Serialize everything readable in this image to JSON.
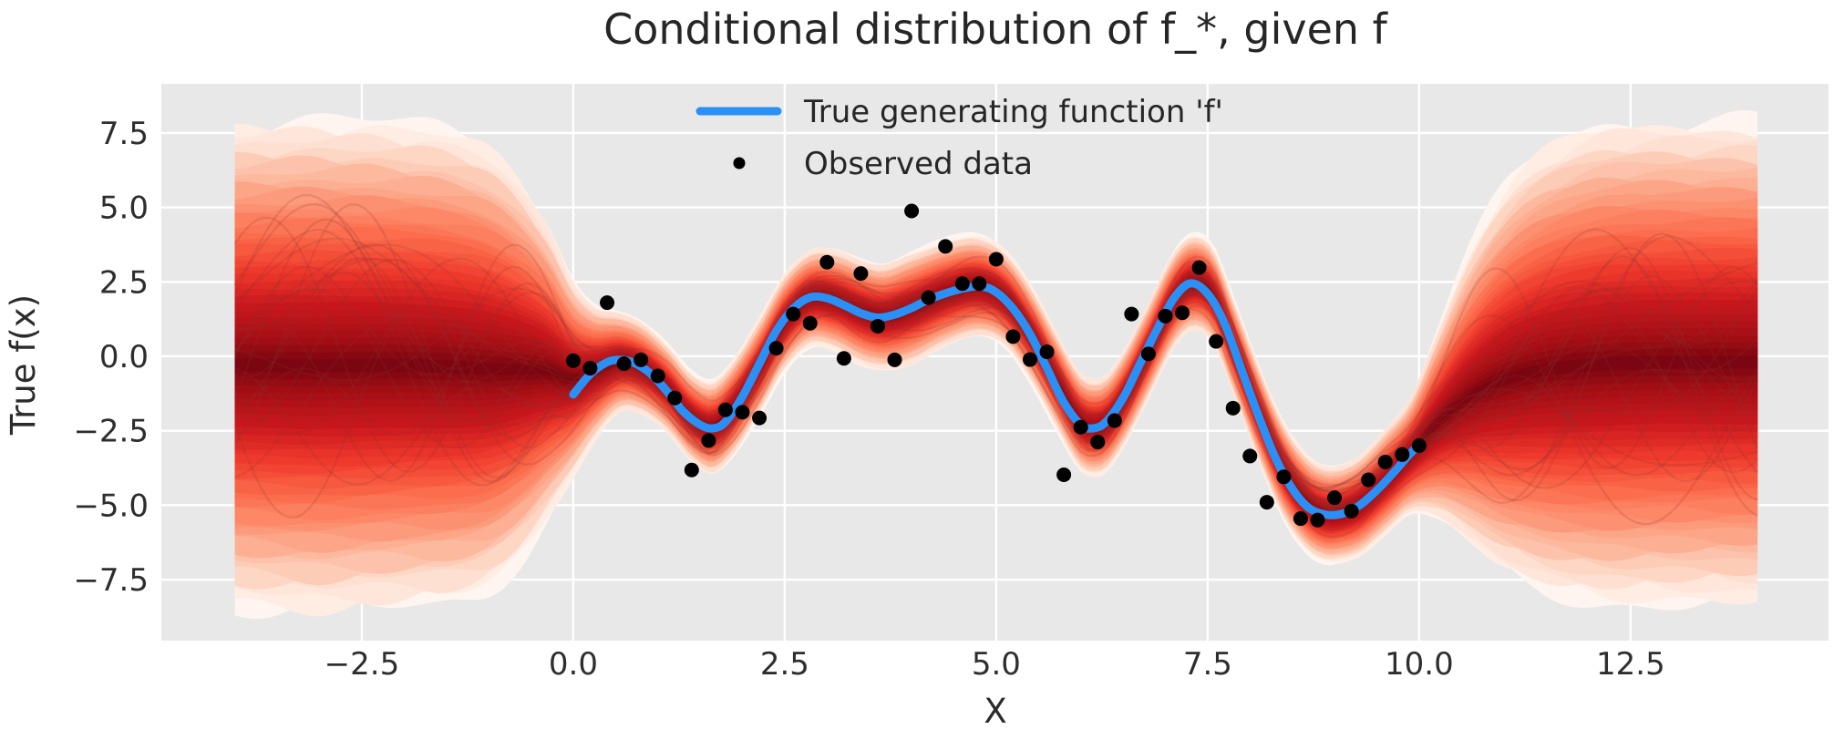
{
  "figure": {
    "background": "#ffffff",
    "axes_background": "#e8e8e8",
    "grid_color": "#ffffff",
    "text_color": "#262626"
  },
  "chart_data": {
    "type": "line",
    "title": "Conditional distribution of f_*, given f",
    "xlabel": "X",
    "ylabel": "True f(x)",
    "grid": true,
    "legend_position": "upper center",
    "legend_frame": false,
    "xlim": [
      -4.87,
      14.84
    ],
    "ylim": [
      -9.55,
      9.15
    ],
    "x_ticks": [
      -2.5,
      0.0,
      2.5,
      5.0,
      7.5,
      10.0,
      12.5
    ],
    "x_tick_labels": [
      "−2.5",
      "0.0",
      "2.5",
      "5.0",
      "7.5",
      "10.0",
      "12.5"
    ],
    "y_ticks": [
      7.5,
      5.0,
      2.5,
      0.0,
      -2.5,
      -5.0,
      -7.5
    ],
    "y_tick_labels": [
      "7.5",
      "5.0",
      "2.5",
      "0.0",
      "−2.5",
      "−5.0",
      "−7.5"
    ],
    "legend": [
      {
        "label": "True generating function 'f'",
        "marker": "line",
        "color": "#2b90f5"
      },
      {
        "label": "Observed data",
        "marker": "dot",
        "color": "#000000"
      }
    ],
    "series": [
      {
        "name": "True generating function 'f'",
        "type": "line",
        "color": "#2b90f5",
        "line_width": 9,
        "x": [
          0,
          0.2,
          0.4,
          0.55,
          0.7,
          0.9,
          1.1,
          1.3,
          1.5,
          1.65,
          1.8,
          2.0,
          2.2,
          2.4,
          2.6,
          2.8,
          3.0,
          3.2,
          3.4,
          3.6,
          3.8,
          4.0,
          4.2,
          4.5,
          4.8,
          5.0,
          5.2,
          5.4,
          5.6,
          5.8,
          6.0,
          6.15,
          6.3,
          6.5,
          6.7,
          6.9,
          7.1,
          7.3,
          7.5,
          7.7,
          7.9,
          8.1,
          8.3,
          8.5,
          8.7,
          8.9,
          9.1,
          9.3,
          9.5,
          9.7,
          9.9,
          10.0
        ],
        "y": [
          -1.28,
          -0.6,
          -0.2,
          -0.12,
          -0.2,
          -0.55,
          -1.15,
          -1.85,
          -2.3,
          -2.42,
          -2.2,
          -1.35,
          -0.25,
          0.85,
          1.6,
          1.98,
          1.95,
          1.72,
          1.45,
          1.3,
          1.4,
          1.62,
          1.9,
          2.2,
          2.35,
          2.15,
          1.6,
          0.75,
          -0.4,
          -1.55,
          -2.3,
          -2.42,
          -2.2,
          -1.4,
          -0.25,
          0.9,
          1.95,
          2.45,
          2.1,
          1.1,
          -0.45,
          -2.0,
          -3.4,
          -4.45,
          -5.1,
          -5.32,
          -5.28,
          -5.0,
          -4.5,
          -3.9,
          -3.25,
          -3.0
        ]
      },
      {
        "name": "Observed data",
        "type": "scatter",
        "color": "#000000",
        "marker_radius": 8,
        "x": [
          0.0,
          0.2,
          0.4,
          0.6,
          0.8,
          1.0,
          1.2,
          1.4,
          1.6,
          1.8,
          2.0,
          2.2,
          2.4,
          2.6,
          2.8,
          3.0,
          3.2,
          3.4,
          3.6,
          3.8,
          4.0,
          4.2,
          4.4,
          4.6,
          4.8,
          5.0,
          5.2,
          5.4,
          5.6,
          5.8,
          6.0,
          6.2,
          6.4,
          6.6,
          6.8,
          7.0,
          7.2,
          7.4,
          7.6,
          7.8,
          8.0,
          8.2,
          8.4,
          8.6,
          8.8,
          9.0,
          9.2,
          9.4,
          9.6,
          9.8,
          10.0
        ],
        "y": [
          -0.15,
          -0.4,
          1.8,
          -0.25,
          -0.12,
          -0.66,
          -1.4,
          -3.82,
          -2.83,
          -1.8,
          -1.88,
          -2.07,
          0.27,
          1.42,
          1.11,
          3.16,
          -0.07,
          2.78,
          1.01,
          -0.12,
          4.88,
          1.97,
          3.69,
          2.44,
          2.44,
          3.26,
          0.66,
          -0.11,
          0.15,
          -3.98,
          -2.38,
          -2.88,
          -2.16,
          1.42,
          0.08,
          1.35,
          1.46,
          2.98,
          0.5,
          -1.74,
          -3.35,
          -4.9,
          -4.05,
          -5.45,
          -5.5,
          -4.75,
          -5.2,
          -4.15,
          -3.55,
          -3.3,
          -3.0
        ]
      }
    ],
    "posterior_density": {
      "description": "Conditional GP density of f_* given observed f: nested percentile bands shaded with the Reds colormap, tight around the data on x in [0,10], wide prior fan outside",
      "colormap": [
        "#fff5f0",
        "#fee0d2",
        "#fcbba1",
        "#fc9272",
        "#fb6a4a",
        "#ef3b2c",
        "#cb181d",
        "#a50f15",
        "#67000d"
      ],
      "x_range": [
        -4,
        14
      ],
      "bands": 34,
      "max_sigma": 3.3,
      "x": [
        -4,
        -3,
        -2,
        -1.5,
        -1,
        -0.6,
        -0.3,
        0,
        0.25,
        0.55,
        0.8,
        1.1,
        1.4,
        1.65,
        1.9,
        2.2,
        2.5,
        2.8,
        3.1,
        3.4,
        3.65,
        4,
        4.4,
        4.8,
        5.1,
        5.4,
        5.7,
        6,
        6.15,
        6.3,
        6.5,
        6.8,
        7.1,
        7.3,
        7.55,
        7.8,
        8.1,
        8.4,
        8.7,
        8.9,
        9.1,
        9.3,
        9.6,
        9.9,
        10.2,
        10.6,
        11,
        11.5,
        12,
        12.5,
        13,
        14
      ],
      "mean": [
        -0.3,
        -0.32,
        -0.3,
        -0.35,
        -0.42,
        -0.45,
        -0.5,
        -0.75,
        -0.55,
        -0.2,
        -0.38,
        -1.05,
        -2.05,
        -2.4,
        -1.7,
        -0.35,
        1.15,
        1.95,
        1.88,
        1.5,
        1.32,
        1.6,
        2.1,
        2.35,
        1.95,
        0.8,
        -0.75,
        -2.2,
        -2.4,
        -2.25,
        -1.45,
        0.2,
        1.9,
        2.45,
        2.1,
        0.35,
        -1.9,
        -3.85,
        -5.0,
        -5.3,
        -5.25,
        -5.0,
        -4.2,
        -3.3,
        -2.3,
        -1.35,
        -0.8,
        -0.45,
        -0.3,
        -0.22,
        -0.2,
        -0.2
      ],
      "std": [
        2.45,
        2.5,
        2.45,
        2.4,
        2.25,
        1.9,
        1.5,
        1.0,
        0.7,
        0.52,
        0.48,
        0.46,
        0.46,
        0.48,
        0.5,
        0.5,
        0.5,
        0.5,
        0.52,
        0.55,
        0.55,
        0.58,
        0.55,
        0.52,
        0.5,
        0.5,
        0.5,
        0.5,
        0.5,
        0.5,
        0.5,
        0.5,
        0.5,
        0.5,
        0.5,
        0.5,
        0.5,
        0.5,
        0.5,
        0.5,
        0.5,
        0.52,
        0.55,
        0.6,
        0.95,
        1.5,
        1.95,
        2.25,
        2.4,
        2.45,
        2.45,
        2.45
      ]
    },
    "samples": {
      "description": "thin semi-transparent sample paths drawn from the conditional distribution",
      "count": 22,
      "color": "#8a3033",
      "alpha": 0.18,
      "width": 2.3,
      "seed": 11
    }
  }
}
